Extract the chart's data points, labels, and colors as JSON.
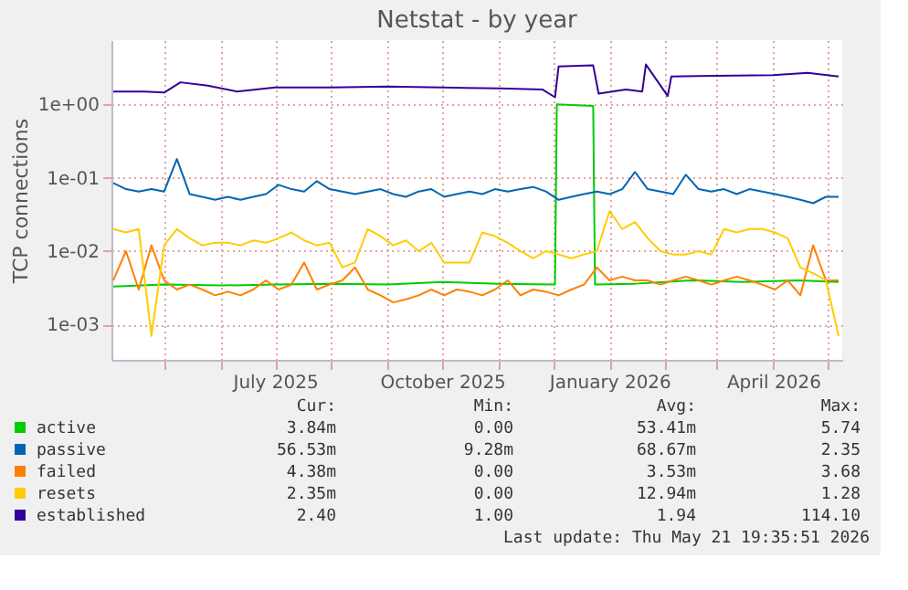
{
  "chart_data": {
    "type": "line",
    "title": "Netstat - by year",
    "ylabel": "TCP connections",
    "log": true,
    "grid": true,
    "legend": "bottom",
    "xlim": [
      "2025-04-02",
      "2026-05-09"
    ],
    "xticks": [
      {
        "value": "2025-05-01",
        "label": null
      },
      {
        "value": "2025-06-01",
        "label": null
      },
      {
        "value": "2025-07-01",
        "label": "July 2025"
      },
      {
        "value": "2025-08-01",
        "label": null
      },
      {
        "value": "2025-09-01",
        "label": null
      },
      {
        "value": "2025-10-01",
        "label": "October 2025"
      },
      {
        "value": "2025-11-01",
        "label": null
      },
      {
        "value": "2025-12-01",
        "label": null
      },
      {
        "value": "2026-01-01",
        "label": "January 2026"
      },
      {
        "value": "2026-02-01",
        "label": null
      },
      {
        "value": "2026-03-01",
        "label": null
      },
      {
        "value": "2026-04-01",
        "label": "April 2026"
      },
      {
        "value": "2026-05-01",
        "label": null
      }
    ],
    "ylim": [
      0.00033,
      7.5
    ],
    "yticks": [
      {
        "value": 0.001,
        "label": "1e-03"
      },
      {
        "value": 0.01,
        "label": "1e-02"
      },
      {
        "value": 0.1,
        "label": "1e-01"
      },
      {
        "value": 1,
        "label": "1e+00"
      }
    ],
    "x": [
      "2025-04-03",
      "2025-04-10",
      "2025-04-17",
      "2025-04-24",
      "2025-05-01",
      "2025-05-08",
      "2025-05-15",
      "2025-05-22",
      "2025-05-29",
      "2025-06-05",
      "2025-06-12",
      "2025-06-19",
      "2025-06-26",
      "2025-07-03",
      "2025-07-10",
      "2025-07-17",
      "2025-07-24",
      "2025-07-31",
      "2025-08-07",
      "2025-08-14",
      "2025-08-21",
      "2025-08-28",
      "2025-09-04",
      "2025-09-11",
      "2025-09-18",
      "2025-09-25",
      "2025-10-02",
      "2025-10-09",
      "2025-10-16",
      "2025-10-23",
      "2025-10-30",
      "2025-11-06",
      "2025-11-13",
      "2025-11-20",
      "2025-11-27",
      "2025-12-04",
      "2025-12-11",
      "2025-12-18",
      "2025-12-25",
      "2026-01-01",
      "2026-01-08",
      "2026-01-15",
      "2026-01-22",
      "2026-01-29",
      "2026-02-05",
      "2026-02-12",
      "2026-02-19",
      "2026-02-26",
      "2026-03-05",
      "2026-03-12",
      "2026-03-19",
      "2026-03-26",
      "2026-04-02",
      "2026-04-09",
      "2026-04-16",
      "2026-04-23",
      "2026-04-30",
      "2026-05-07"
    ],
    "series": [
      {
        "name": "active",
        "color": "#00cc00",
        "x": [
          "2025-04-03",
          "2025-05-01",
          "2025-06-01",
          "2025-07-01",
          "2025-08-01",
          "2025-09-01",
          "2025-10-01",
          "2025-11-01",
          "2025-12-02",
          "2025-12-03",
          "2025-12-23",
          "2025-12-24",
          "2026-01-15",
          "2026-02-15",
          "2026-03-15",
          "2026-04-15",
          "2026-05-07"
        ],
        "values": [
          0.0033,
          0.0035,
          0.0034,
          0.0035,
          0.0036,
          0.0035,
          0.0038,
          0.0036,
          0.0035,
          1.0,
          0.95,
          0.0035,
          0.0036,
          0.004,
          0.0038,
          0.004,
          0.0038
        ]
      },
      {
        "name": "passive",
        "color": "#0066b3",
        "values": [
          0.085,
          0.07,
          0.065,
          0.07,
          0.065,
          0.18,
          0.06,
          0.055,
          0.05,
          0.055,
          0.05,
          0.055,
          0.06,
          0.08,
          0.07,
          0.065,
          0.09,
          0.07,
          0.065,
          0.06,
          0.065,
          0.07,
          0.06,
          0.055,
          0.065,
          0.07,
          0.055,
          0.06,
          0.065,
          0.06,
          0.07,
          0.065,
          0.07,
          0.075,
          0.065,
          0.05,
          0.055,
          0.06,
          0.065,
          0.06,
          0.07,
          0.12,
          0.07,
          0.065,
          0.06,
          0.11,
          0.07,
          0.065,
          0.07,
          0.06,
          0.07,
          0.065,
          0.06,
          0.055,
          0.05,
          0.045,
          0.055,
          0.055
        ]
      },
      {
        "name": "failed",
        "color": "#ff8000",
        "values": [
          0.004,
          0.01,
          0.003,
          0.012,
          0.004,
          0.003,
          0.0035,
          0.003,
          0.0025,
          0.0028,
          0.0025,
          0.003,
          0.004,
          0.003,
          0.0035,
          0.007,
          0.003,
          0.0035,
          0.004,
          0.006,
          0.003,
          0.0025,
          0.002,
          0.0022,
          0.0025,
          0.003,
          0.0025,
          0.003,
          0.0028,
          0.0025,
          0.003,
          0.004,
          0.0025,
          0.003,
          0.0028,
          0.0025,
          0.003,
          0.0035,
          0.006,
          0.004,
          0.0045,
          0.004,
          0.004,
          0.0035,
          0.004,
          0.0045,
          0.004,
          0.0035,
          0.004,
          0.0045,
          0.004,
          0.0035,
          0.003,
          0.004,
          0.0025,
          0.012,
          0.004,
          0.004
        ]
      },
      {
        "name": "resets",
        "color": "#ffcc00",
        "values": [
          0.02,
          0.018,
          0.02,
          0.0007,
          0.012,
          0.02,
          0.015,
          0.012,
          0.013,
          0.013,
          0.012,
          0.014,
          0.013,
          0.015,
          0.018,
          0.014,
          0.012,
          0.013,
          0.006,
          0.007,
          0.02,
          0.016,
          0.012,
          0.014,
          0.01,
          0.013,
          0.007,
          0.007,
          0.007,
          0.018,
          0.016,
          0.013,
          0.01,
          0.008,
          0.01,
          0.009,
          0.008,
          0.009,
          0.01,
          0.035,
          0.02,
          0.025,
          0.015,
          0.01,
          0.009,
          0.009,
          0.01,
          0.009,
          0.02,
          0.018,
          0.02,
          0.02,
          0.018,
          0.015,
          0.006,
          0.005,
          0.004,
          0.0007
        ]
      },
      {
        "name": "established",
        "color": "#330099",
        "x": [
          "2025-04-03",
          "2025-04-20",
          "2025-05-01",
          "2025-05-10",
          "2025-05-25",
          "2025-06-10",
          "2025-07-01",
          "2025-08-01",
          "2025-09-01",
          "2025-10-01",
          "2025-11-01",
          "2025-11-25",
          "2025-12-02",
          "2025-12-04",
          "2025-12-23",
          "2025-12-26",
          "2026-01-10",
          "2026-01-19",
          "2026-01-21",
          "2026-02-02",
          "2026-02-04",
          "2026-03-01",
          "2026-04-01",
          "2026-04-20",
          "2026-05-07"
        ],
        "values": [
          1.5,
          1.5,
          1.45,
          2.0,
          1.8,
          1.5,
          1.7,
          1.7,
          1.75,
          1.7,
          1.65,
          1.6,
          1.25,
          3.3,
          3.4,
          1.4,
          1.6,
          1.5,
          3.5,
          1.3,
          2.4,
          2.45,
          2.5,
          2.7,
          2.4
        ]
      }
    ],
    "annotations": [
      "Cur:",
      "Min:",
      "Avg:",
      "Max:",
      "3.84m",
      "0.00",
      "53.41m",
      "5.74",
      "56.53m",
      "9.28m",
      "68.67m",
      "2.35",
      "4.38m",
      "0.00",
      "3.53m",
      "3.68",
      "2.35m",
      "0.00",
      "12.94m",
      "1.28",
      "2.40",
      "1.00",
      "1.94",
      "114.10",
      "Last update: Thu May 21 19:35:51 2026"
    ]
  }
}
